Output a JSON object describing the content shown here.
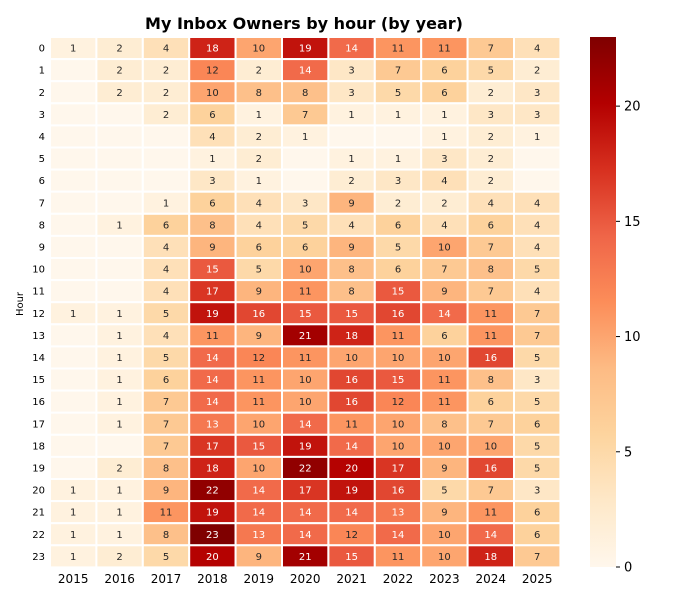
{
  "chart_data": {
    "type": "heatmap",
    "title": "My Inbox Owners by hour (by year)",
    "xlabel": "",
    "ylabel": "Hour",
    "x_categories": [
      "2015",
      "2016",
      "2017",
      "2018",
      "2019",
      "2020",
      "2021",
      "2022",
      "2023",
      "2024",
      "2025"
    ],
    "y_categories": [
      "0",
      "1",
      "2",
      "3",
      "4",
      "5",
      "6",
      "7",
      "8",
      "9",
      "10",
      "11",
      "12",
      "13",
      "14",
      "15",
      "16",
      "17",
      "18",
      "19",
      "20",
      "21",
      "22",
      "23"
    ],
    "values": [
      [
        1,
        2,
        4,
        18,
        10,
        19,
        14,
        11,
        11,
        7,
        4
      ],
      [
        0,
        2,
        2,
        12,
        2,
        14,
        3,
        7,
        6,
        5,
        2
      ],
      [
        0,
        2,
        2,
        10,
        8,
        8,
        3,
        5,
        6,
        2,
        3
      ],
      [
        0,
        0,
        2,
        6,
        1,
        7,
        1,
        1,
        1,
        3,
        3
      ],
      [
        0,
        0,
        0,
        4,
        2,
        1,
        0,
        0,
        1,
        2,
        1
      ],
      [
        0,
        0,
        0,
        1,
        2,
        0,
        1,
        1,
        3,
        2,
        0
      ],
      [
        0,
        0,
        0,
        3,
        1,
        0,
        2,
        3,
        4,
        2,
        0
      ],
      [
        0,
        0,
        1,
        6,
        4,
        3,
        9,
        2,
        2,
        4,
        4
      ],
      [
        0,
        1,
        6,
        8,
        4,
        5,
        4,
        6,
        4,
        6,
        4
      ],
      [
        0,
        0,
        4,
        9,
        6,
        6,
        9,
        5,
        10,
        7,
        4
      ],
      [
        0,
        0,
        4,
        15,
        5,
        10,
        8,
        6,
        7,
        8,
        5
      ],
      [
        0,
        0,
        4,
        17,
        9,
        11,
        8,
        15,
        9,
        7,
        4
      ],
      [
        1,
        1,
        5,
        19,
        16,
        15,
        15,
        16,
        14,
        11,
        7
      ],
      [
        0,
        1,
        4,
        11,
        9,
        21,
        18,
        11,
        6,
        11,
        7
      ],
      [
        0,
        1,
        5,
        14,
        12,
        11,
        10,
        10,
        10,
        16,
        5
      ],
      [
        0,
        1,
        6,
        14,
        11,
        10,
        16,
        15,
        11,
        8,
        3
      ],
      [
        0,
        1,
        7,
        14,
        11,
        10,
        16,
        12,
        11,
        6,
        5
      ],
      [
        0,
        1,
        7,
        13,
        10,
        14,
        11,
        10,
        8,
        7,
        6
      ],
      [
        0,
        0,
        7,
        17,
        15,
        19,
        14,
        10,
        10,
        10,
        5
      ],
      [
        0,
        2,
        8,
        18,
        10,
        22,
        20,
        17,
        9,
        16,
        5
      ],
      [
        1,
        1,
        9,
        22,
        14,
        17,
        19,
        16,
        5,
        7,
        3
      ],
      [
        1,
        1,
        11,
        19,
        14,
        14,
        14,
        13,
        9,
        11,
        6
      ],
      [
        1,
        1,
        8,
        23,
        13,
        14,
        12,
        14,
        10,
        14,
        6
      ],
      [
        1,
        2,
        5,
        20,
        9,
        21,
        15,
        11,
        10,
        18,
        7
      ]
    ],
    "zero_label_hidden": true,
    "colormap": "OrRd",
    "colorbar": {
      "min": 0,
      "max": 23,
      "ticks": [
        0,
        5,
        10,
        15,
        20
      ]
    },
    "grid": false,
    "legend": "colorbar-right"
  }
}
